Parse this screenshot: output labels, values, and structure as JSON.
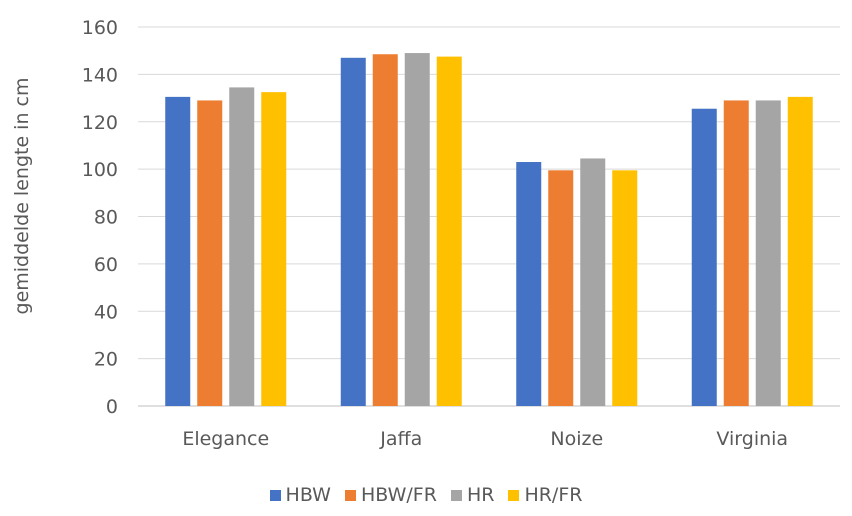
{
  "chart_data": {
    "type": "bar",
    "title": "",
    "xlabel": "",
    "ylabel": "gemiddelde lengte in cm",
    "categories": [
      "Elegance",
      "Jaffa",
      "Noize",
      "Virginia"
    ],
    "series": [
      {
        "name": "HBW",
        "color": "#4472C4",
        "values": [
          130.5,
          147,
          103,
          125.5
        ]
      },
      {
        "name": "HBW/FR",
        "color": "#ED7D31",
        "values": [
          129,
          148.5,
          99.5,
          129
        ]
      },
      {
        "name": "HR",
        "color": "#A5A5A5",
        "values": [
          134.5,
          149,
          104.5,
          129
        ]
      },
      {
        "name": "HR/FR",
        "color": "#FFC000",
        "values": [
          132.5,
          147.5,
          99.5,
          130.5
        ]
      }
    ],
    "ylim": [
      0,
      160
    ],
    "yticks": [
      0,
      20,
      40,
      60,
      80,
      100,
      120,
      140,
      160
    ],
    "grid": true,
    "legend_position": "bottom"
  }
}
